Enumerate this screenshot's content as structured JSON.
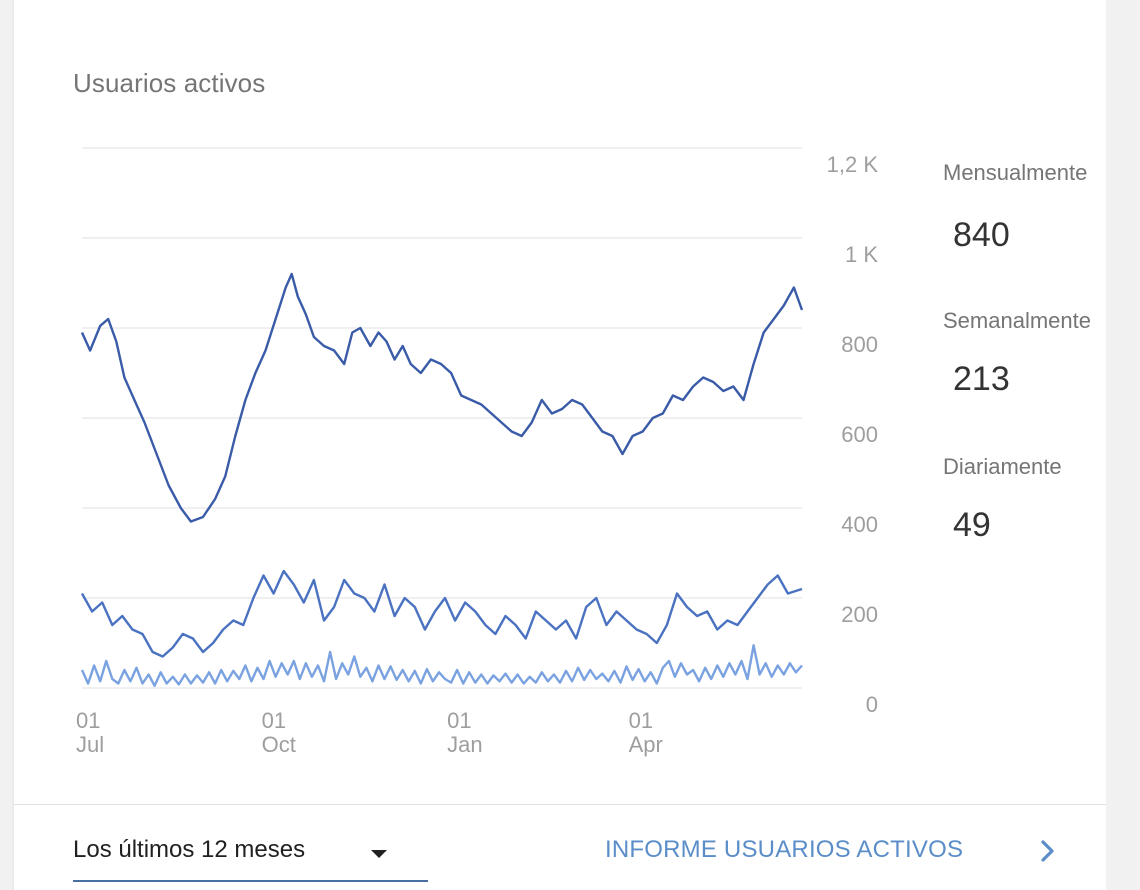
{
  "card": {
    "title": "Usuarios activos"
  },
  "stats": [
    {
      "label": "Mensualmente",
      "value": "840"
    },
    {
      "label": "Semanalmente",
      "value": "213"
    },
    {
      "label": "Diariamente",
      "value": "49"
    }
  ],
  "footer": {
    "range_label": "Los últimos 12 meses",
    "report_label": "INFORME USUARIOS ACTIVOS",
    "caret_icon": "caret-down-icon",
    "chevron_icon": "chevron-right-icon"
  },
  "colors": {
    "line_monthly": "#3a5ba8",
    "line_weekly": "#4a72c0",
    "line_daily": "#7aa2e0",
    "grid": "#e6e6e6",
    "axis_text": "#9e9e9e",
    "accent": "#5b8ec9"
  },
  "chart_data": {
    "type": "line",
    "x_ticks": [
      {
        "day": "01",
        "month": "Jul",
        "date": "2018-07-01"
      },
      {
        "day": "01",
        "month": "Oct",
        "date": "2018-10-01"
      },
      {
        "day": "01",
        "month": "Jan",
        "date": "2019-01-01"
      },
      {
        "day": "01",
        "month": "Apr",
        "date": "2019-04-01"
      }
    ],
    "x_range": [
      "2018-06-29",
      "2019-06-21"
    ],
    "y_ticks": [
      {
        "value": 0,
        "label": "0"
      },
      {
        "value": 200,
        "label": "200"
      },
      {
        "value": 400,
        "label": "400"
      },
      {
        "value": 600,
        "label": "600"
      },
      {
        "value": 800,
        "label": "800"
      },
      {
        "value": 1000,
        "label": "1 K"
      },
      {
        "value": 1200,
        "label": "1,2 K"
      }
    ],
    "ylim": [
      0,
      1200
    ],
    "axis_side": "right",
    "grid": true,
    "series": [
      {
        "key": "monthly",
        "x": [
          "2018-06-29",
          "2018-07-03",
          "2018-07-08",
          "2018-07-12",
          "2018-07-16",
          "2018-07-20",
          "2018-07-25",
          "2018-07-30",
          "2018-08-05",
          "2018-08-11",
          "2018-08-17",
          "2018-08-22",
          "2018-08-28",
          "2018-09-03",
          "2018-09-08",
          "2018-09-13",
          "2018-09-18",
          "2018-09-23",
          "2018-09-28",
          "2018-10-03",
          "2018-10-08",
          "2018-10-11",
          "2018-10-14",
          "2018-10-18",
          "2018-10-22",
          "2018-10-27",
          "2018-11-01",
          "2018-11-06",
          "2018-11-10",
          "2018-11-14",
          "2018-11-19",
          "2018-11-23",
          "2018-11-27",
          "2018-12-01",
          "2018-12-05",
          "2018-12-09",
          "2018-12-14",
          "2018-12-19",
          "2018-12-24",
          "2018-12-29",
          "2019-01-03",
          "2019-01-08",
          "2019-01-13",
          "2019-01-18",
          "2019-01-23",
          "2019-01-28",
          "2019-02-02",
          "2019-02-07",
          "2019-02-12",
          "2019-02-17",
          "2019-02-22",
          "2019-02-27",
          "2019-03-04",
          "2019-03-09",
          "2019-03-14",
          "2019-03-19",
          "2019-03-24",
          "2019-03-29",
          "2019-04-03",
          "2019-04-08",
          "2019-04-13",
          "2019-04-18",
          "2019-04-23",
          "2019-04-28",
          "2019-05-03",
          "2019-05-08",
          "2019-05-13",
          "2019-05-18",
          "2019-05-23",
          "2019-05-28",
          "2019-06-02",
          "2019-06-07",
          "2019-06-12",
          "2019-06-17",
          "2019-06-21"
        ],
        "values": [
          790,
          750,
          805,
          820,
          770,
          690,
          640,
          590,
          520,
          450,
          400,
          370,
          380,
          420,
          470,
          560,
          640,
          700,
          750,
          820,
          890,
          920,
          870,
          830,
          780,
          760,
          750,
          720,
          790,
          800,
          760,
          790,
          770,
          730,
          760,
          720,
          700,
          730,
          720,
          700,
          650,
          640,
          630,
          610,
          590,
          570,
          560,
          590,
          640,
          610,
          620,
          640,
          630,
          600,
          570,
          560,
          520,
          560,
          570,
          600,
          610,
          650,
          640,
          670,
          690,
          680,
          660,
          670,
          640,
          720,
          790,
          820,
          850,
          890,
          840
        ]
      },
      {
        "key": "weekly",
        "x": [
          "2018-06-29",
          "2018-07-04",
          "2018-07-09",
          "2018-07-14",
          "2018-07-19",
          "2018-07-24",
          "2018-07-29",
          "2018-08-03",
          "2018-08-08",
          "2018-08-13",
          "2018-08-18",
          "2018-08-23",
          "2018-08-28",
          "2018-09-02",
          "2018-09-07",
          "2018-09-12",
          "2018-09-17",
          "2018-09-22",
          "2018-09-27",
          "2018-10-02",
          "2018-10-07",
          "2018-10-12",
          "2018-10-17",
          "2018-10-22",
          "2018-10-27",
          "2018-11-01",
          "2018-11-06",
          "2018-11-11",
          "2018-11-16",
          "2018-11-21",
          "2018-11-26",
          "2018-12-01",
          "2018-12-06",
          "2018-12-11",
          "2018-12-16",
          "2018-12-21",
          "2018-12-26",
          "2018-12-31",
          "2019-01-05",
          "2019-01-10",
          "2019-01-15",
          "2019-01-20",
          "2019-01-25",
          "2019-01-30",
          "2019-02-04",
          "2019-02-09",
          "2019-02-14",
          "2019-02-19",
          "2019-02-24",
          "2019-03-01",
          "2019-03-06",
          "2019-03-11",
          "2019-03-16",
          "2019-03-21",
          "2019-03-26",
          "2019-03-31",
          "2019-04-05",
          "2019-04-10",
          "2019-04-15",
          "2019-04-20",
          "2019-04-25",
          "2019-04-30",
          "2019-05-05",
          "2019-05-10",
          "2019-05-15",
          "2019-05-20",
          "2019-05-25",
          "2019-05-30",
          "2019-06-04",
          "2019-06-09",
          "2019-06-14",
          "2019-06-21"
        ],
        "values": [
          210,
          170,
          190,
          140,
          160,
          130,
          120,
          80,
          70,
          90,
          120,
          110,
          80,
          100,
          130,
          150,
          140,
          200,
          250,
          210,
          260,
          230,
          190,
          240,
          150,
          180,
          240,
          210,
          200,
          170,
          230,
          160,
          200,
          180,
          130,
          170,
          200,
          150,
          190,
          170,
          140,
          120,
          160,
          140,
          110,
          170,
          150,
          130,
          150,
          110,
          180,
          200,
          140,
          170,
          150,
          130,
          120,
          100,
          140,
          210,
          180,
          160,
          170,
          130,
          150,
          140,
          170,
          200,
          230,
          250,
          210,
          220
        ]
      },
      {
        "key": "daily",
        "x": [
          "2018-06-29",
          "2018-07-02",
          "2018-07-05",
          "2018-07-08",
          "2018-07-11",
          "2018-07-14",
          "2018-07-17",
          "2018-07-20",
          "2018-07-23",
          "2018-07-26",
          "2018-07-29",
          "2018-08-01",
          "2018-08-04",
          "2018-08-07",
          "2018-08-10",
          "2018-08-13",
          "2018-08-16",
          "2018-08-19",
          "2018-08-22",
          "2018-08-25",
          "2018-08-28",
          "2018-08-31",
          "2018-09-03",
          "2018-09-06",
          "2018-09-09",
          "2018-09-12",
          "2018-09-15",
          "2018-09-18",
          "2018-09-21",
          "2018-09-24",
          "2018-09-27",
          "2018-09-30",
          "2018-10-03",
          "2018-10-06",
          "2018-10-09",
          "2018-10-12",
          "2018-10-15",
          "2018-10-18",
          "2018-10-21",
          "2018-10-24",
          "2018-10-27",
          "2018-10-30",
          "2018-11-02",
          "2018-11-05",
          "2018-11-08",
          "2018-11-11",
          "2018-11-14",
          "2018-11-17",
          "2018-11-20",
          "2018-11-23",
          "2018-11-26",
          "2018-11-29",
          "2018-12-02",
          "2018-12-05",
          "2018-12-08",
          "2018-12-11",
          "2018-12-14",
          "2018-12-17",
          "2018-12-20",
          "2018-12-23",
          "2018-12-26",
          "2018-12-29",
          "2019-01-01",
          "2019-01-04",
          "2019-01-07",
          "2019-01-10",
          "2019-01-13",
          "2019-01-16",
          "2019-01-19",
          "2019-01-22",
          "2019-01-25",
          "2019-01-28",
          "2019-01-31",
          "2019-02-03",
          "2019-02-06",
          "2019-02-09",
          "2019-02-12",
          "2019-02-15",
          "2019-02-18",
          "2019-02-21",
          "2019-02-24",
          "2019-02-27",
          "2019-03-02",
          "2019-03-05",
          "2019-03-08",
          "2019-03-11",
          "2019-03-14",
          "2019-03-17",
          "2019-03-20",
          "2019-03-23",
          "2019-03-26",
          "2019-03-29",
          "2019-04-01",
          "2019-04-04",
          "2019-04-07",
          "2019-04-10",
          "2019-04-13",
          "2019-04-16",
          "2019-04-19",
          "2019-04-22",
          "2019-04-25",
          "2019-04-28",
          "2019-05-01",
          "2019-05-04",
          "2019-05-07",
          "2019-05-10",
          "2019-05-13",
          "2019-05-16",
          "2019-05-19",
          "2019-05-22",
          "2019-05-25",
          "2019-05-28",
          "2019-05-31",
          "2019-06-03",
          "2019-06-06",
          "2019-06-09",
          "2019-06-12",
          "2019-06-15",
          "2019-06-18",
          "2019-06-21"
        ],
        "values": [
          40,
          10,
          50,
          15,
          60,
          20,
          10,
          40,
          15,
          45,
          10,
          30,
          5,
          35,
          10,
          25,
          8,
          30,
          10,
          28,
          12,
          35,
          10,
          40,
          15,
          38,
          20,
          50,
          15,
          45,
          20,
          60,
          25,
          55,
          30,
          60,
          20,
          55,
          25,
          50,
          15,
          80,
          20,
          55,
          30,
          70,
          25,
          45,
          15,
          50,
          20,
          48,
          18,
          40,
          15,
          38,
          10,
          42,
          15,
          35,
          20,
          12,
          40,
          10,
          35,
          12,
          30,
          10,
          28,
          15,
          32,
          12,
          30,
          10,
          25,
          12,
          35,
          15,
          30,
          12,
          38,
          15,
          45,
          18,
          40,
          20,
          32,
          15,
          38,
          12,
          48,
          18,
          42,
          15,
          35,
          10,
          45,
          60,
          25,
          55,
          30,
          40,
          15,
          45,
          20,
          50,
          25,
          55,
          30,
          60,
          20,
          95,
          30,
          55,
          25,
          50,
          30,
          55,
          35,
          50
        ]
      }
    ]
  }
}
